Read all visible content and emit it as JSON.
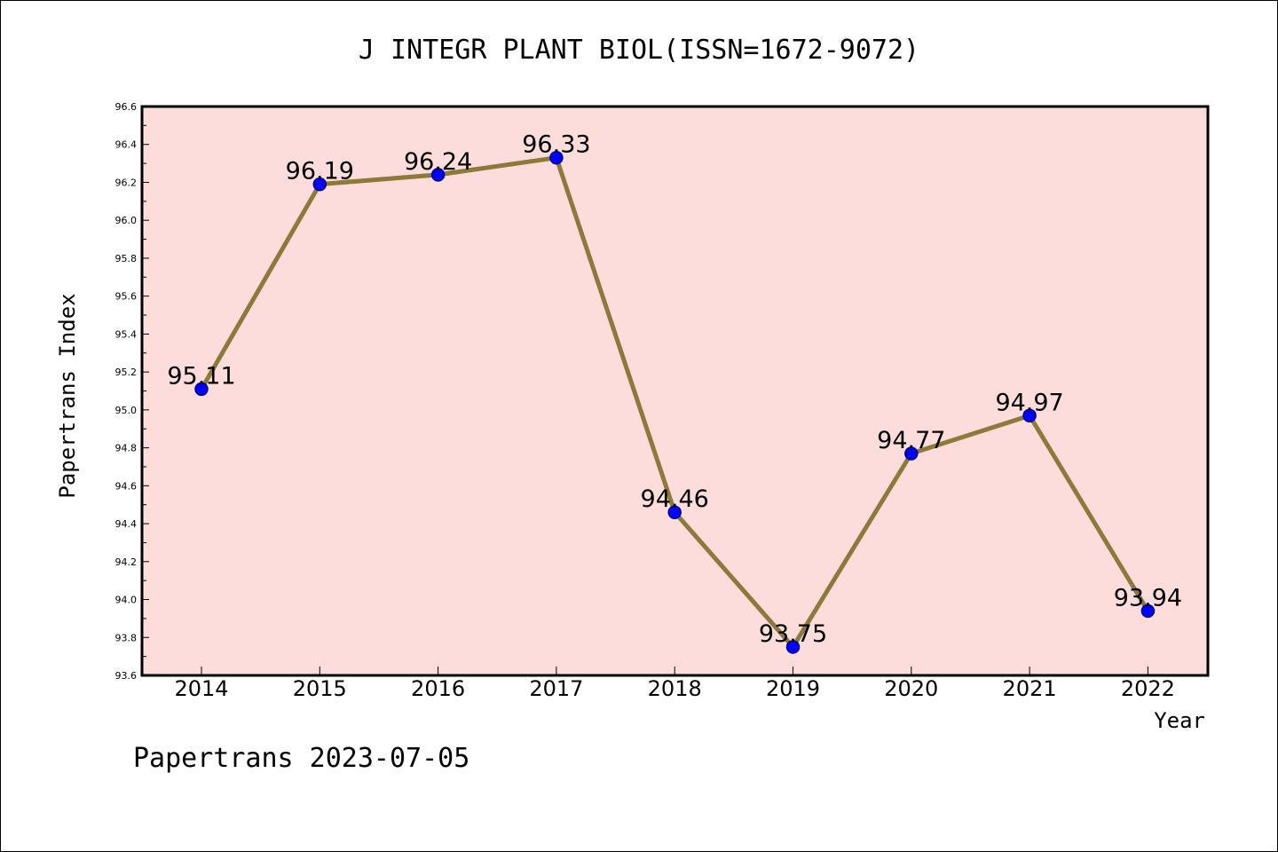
{
  "colors": {
    "plot_background": "#fddcdc",
    "line": "#8b7a3a",
    "marker": "#0000ff",
    "marker_edge": "#00008b"
  },
  "footer": "Papertrans 2023-07-05",
  "chart_data": {
    "type": "line",
    "title": "J INTEGR PLANT BIOL(ISSN=1672-9072)",
    "xlabel": "Year",
    "ylabel": "Papertrans Index",
    "categories": [
      "2014",
      "2015",
      "2016",
      "2017",
      "2018",
      "2019",
      "2020",
      "2021",
      "2022"
    ],
    "series": [
      {
        "name": "Papertrans Index",
        "values": [
          95.11,
          96.19,
          96.24,
          96.33,
          94.46,
          93.75,
          94.77,
          94.97,
          93.94
        ],
        "labels": [
          "95.11",
          "96.19",
          "96.24",
          "96.33",
          "94.46",
          "93.75",
          "94.77",
          "94.97",
          "93.94"
        ]
      }
    ],
    "ylim": [
      93.6,
      96.6
    ],
    "yticks": [
      "93.6",
      "93.8",
      "94.0",
      "94.2",
      "94.4",
      "94.6",
      "94.8",
      "95.0",
      "95.2",
      "95.4",
      "95.6",
      "95.8",
      "96.0",
      "96.2",
      "96.4",
      "96.6"
    ],
    "grid": false,
    "legend": "none"
  }
}
